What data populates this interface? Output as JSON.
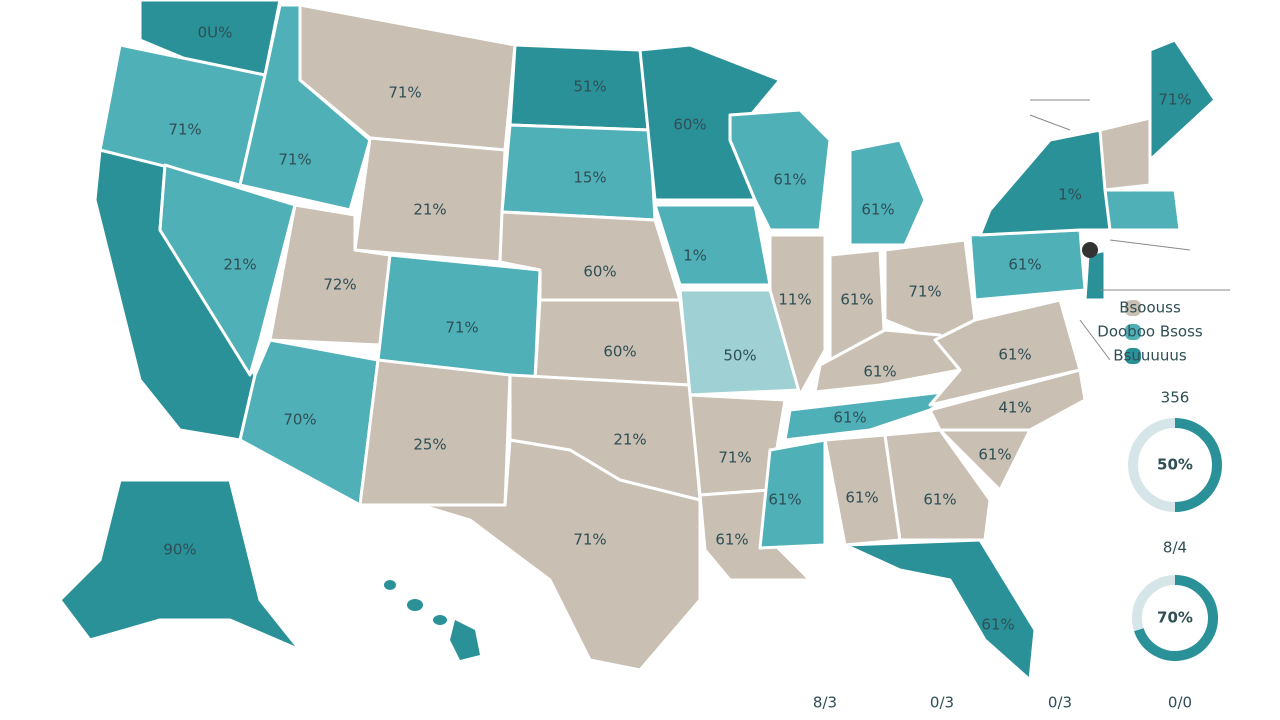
{
  "map": {
    "states": [
      {
        "label": "0U%"
      },
      {
        "label": "71%"
      },
      {
        "label": "71%"
      },
      {
        "label": "21%"
      },
      {
        "label": "71%"
      },
      {
        "label": "21%"
      },
      {
        "label": "72%"
      },
      {
        "label": "71%"
      },
      {
        "label": "70%"
      },
      {
        "label": "25%"
      },
      {
        "label": "51%"
      },
      {
        "label": "15%"
      },
      {
        "label": "60%"
      },
      {
        "label": "60%"
      },
      {
        "label": "21%"
      },
      {
        "label": "71%"
      },
      {
        "label": "60%"
      },
      {
        "label": "1%"
      },
      {
        "label": "50%"
      },
      {
        "label": "71%"
      },
      {
        "label": "61%"
      },
      {
        "label": "61%"
      },
      {
        "label": "11%"
      },
      {
        "label": "61%"
      },
      {
        "label": "61%"
      },
      {
        "label": "71%"
      },
      {
        "label": "61%"
      },
      {
        "label": "61%"
      },
      {
        "label": "61%"
      },
      {
        "label": "61%"
      },
      {
        "label": "61%"
      },
      {
        "label": "61%"
      },
      {
        "label": "61%"
      },
      {
        "label": "41%"
      },
      {
        "label": "61%"
      },
      {
        "label": "61%"
      },
      {
        "label": "1%"
      },
      {
        "label": "71%"
      },
      {
        "label": "90%"
      }
    ],
    "legend": [
      "Bsoouss",
      "Dooboo Bsoss",
      "Bsuuuuus"
    ],
    "donuts": [
      {
        "caption": "356",
        "value": 50,
        "label": "50%"
      },
      {
        "caption": "8/4",
        "value": 70,
        "label": "70%"
      }
    ],
    "footer": [
      "8/3",
      "0/3",
      "0/3",
      "0/0"
    ]
  }
}
